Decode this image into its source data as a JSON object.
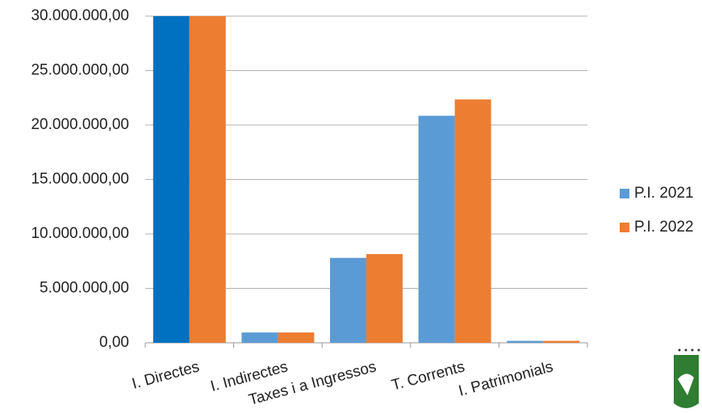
{
  "chart_data": {
    "type": "bar",
    "categories": [
      "I. Directes",
      "I. Indirectes",
      "Taxes i a Ingressos",
      "T. Corrents",
      "I. Patrimonials"
    ],
    "series": [
      {
        "name": "P.I. 2021",
        "color": "#5b9bd5",
        "point_colors": [
          "#0070c0",
          "#5b9bd5",
          "#5b9bd5",
          "#5b9bd5",
          "#5b9bd5"
        ],
        "values": [
          30000000,
          950000,
          7800000,
          20850000,
          180000
        ]
      },
      {
        "name": "P.I. 2022",
        "color": "#ed7d31",
        "values": [
          30000000,
          950000,
          8150000,
          22350000,
          180000
        ]
      }
    ],
    "ylim": [
      0,
      30000000
    ],
    "yticks": [
      {
        "value": 0,
        "label": "0,00"
      },
      {
        "value": 5000000,
        "label": "5.000.000,00"
      },
      {
        "value": 10000000,
        "label": "10.000.000,00"
      },
      {
        "value": 15000000,
        "label": "15.000.000,00"
      },
      {
        "value": 20000000,
        "label": "20.000.000,00"
      },
      {
        "value": 25000000,
        "label": "25.000.000,00"
      },
      {
        "value": 30000000,
        "label": "30.000.000,00"
      }
    ],
    "grid": true,
    "legend": "right"
  }
}
